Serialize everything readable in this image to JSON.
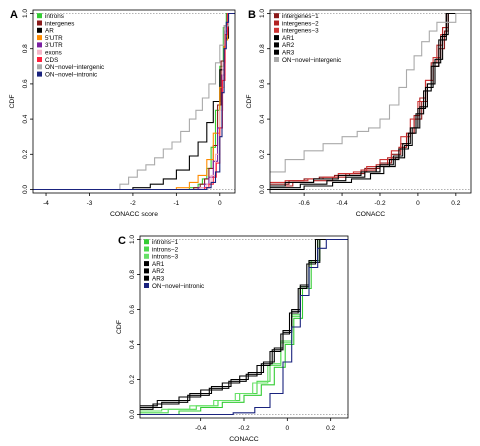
{
  "chart_data": [
    {
      "panel_label": "A",
      "type": "line",
      "subtype": "step-cdf",
      "xlabel": "CONACC score",
      "ylabel": "CDF",
      "xlim": [
        -4.3,
        0.35
      ],
      "ylim": [
        -0.02,
        1.02
      ],
      "x_ticks": [
        -4,
        -3,
        -2,
        -1,
        0
      ],
      "y_ticks": [
        0.0,
        0.2,
        0.4,
        0.6,
        0.8,
        1.0
      ],
      "legend_position": "top-left",
      "series": [
        {
          "name": "introns",
          "color": "#33cc33",
          "x": [
            -4.3,
            -0.7,
            -0.5,
            -0.4,
            -0.3,
            -0.2,
            -0.1,
            0.0,
            0.08,
            0.15,
            0.35
          ],
          "y": [
            0,
            0.01,
            0.03,
            0.06,
            0.12,
            0.24,
            0.45,
            0.7,
            0.92,
            1.0,
            1.0
          ]
        },
        {
          "name": "intergenes",
          "color": "#8b1a1a",
          "x": [
            -4.3,
            -0.6,
            -0.45,
            -0.35,
            -0.25,
            -0.15,
            -0.05,
            0.03,
            0.1,
            0.17,
            0.35
          ],
          "y": [
            0,
            0.01,
            0.03,
            0.06,
            0.12,
            0.25,
            0.48,
            0.73,
            0.93,
            1.0,
            1.0
          ]
        },
        {
          "name": "AR",
          "color": "#000000",
          "x": [
            -4.3,
            -2.0,
            -1.6,
            -1.3,
            -1.0,
            -0.7,
            -0.5,
            -0.3,
            -0.15,
            0.0,
            0.1,
            0.2,
            0.35
          ],
          "y": [
            0,
            0.01,
            0.03,
            0.06,
            0.11,
            0.19,
            0.27,
            0.38,
            0.5,
            0.68,
            0.86,
            1.0,
            1.0
          ]
        },
        {
          "name": "5'UTR",
          "color": "#ff8c00",
          "x": [
            -4.3,
            -1.0,
            -0.7,
            -0.5,
            -0.3,
            -0.15,
            0.0,
            0.1,
            0.18,
            0.35
          ],
          "y": [
            0,
            0.01,
            0.04,
            0.08,
            0.17,
            0.32,
            0.58,
            0.85,
            1.0,
            1.0
          ]
        },
        {
          "name": "3'UTR",
          "color": "#7b1fa2",
          "x": [
            -4.3,
            -0.5,
            -0.35,
            -0.25,
            -0.15,
            -0.05,
            0.05,
            0.12,
            0.18,
            0.35
          ],
          "y": [
            0,
            0.01,
            0.03,
            0.07,
            0.16,
            0.35,
            0.65,
            0.9,
            1.0,
            1.0
          ]
        },
        {
          "name": "exons",
          "color": "#f4b6c8",
          "x": [
            -4.3,
            -0.45,
            -0.3,
            -0.2,
            -0.1,
            0.0,
            0.07,
            0.13,
            0.18,
            0.35
          ],
          "y": [
            0,
            0.01,
            0.03,
            0.08,
            0.2,
            0.45,
            0.72,
            0.92,
            1.0,
            1.0
          ]
        },
        {
          "name": "CDS",
          "color": "#ff1f3c",
          "x": [
            -4.3,
            -0.35,
            -0.25,
            -0.15,
            -0.08,
            0.0,
            0.06,
            0.12,
            0.18,
            0.35
          ],
          "y": [
            0,
            0.01,
            0.03,
            0.07,
            0.15,
            0.35,
            0.62,
            0.88,
            1.0,
            1.0
          ]
        },
        {
          "name": "ON−novel−intergenic",
          "color": "#aaaaaa",
          "x": [
            -4.3,
            -2.5,
            -2.3,
            -2.1,
            -1.9,
            -1.7,
            -1.5,
            -1.3,
            -1.1,
            -0.9,
            -0.7,
            -0.55,
            -0.4,
            -0.25,
            -0.1,
            0.0,
            0.1,
            0.2,
            0.35
          ],
          "y": [
            0,
            0.0,
            0.03,
            0.07,
            0.11,
            0.14,
            0.18,
            0.23,
            0.27,
            0.33,
            0.4,
            0.45,
            0.52,
            0.6,
            0.72,
            0.82,
            0.93,
            1.0,
            1.0
          ]
        },
        {
          "name": "ON−novel−intronic",
          "color": "#1a237e",
          "x": [
            -4.3,
            -0.3,
            -0.2,
            -0.1,
            0.0,
            0.05,
            0.1,
            0.15,
            0.2,
            0.35
          ],
          "y": [
            0,
            0.01,
            0.04,
            0.1,
            0.3,
            0.55,
            0.8,
            0.95,
            1.0,
            1.0
          ]
        }
      ]
    },
    {
      "panel_label": "B",
      "type": "line",
      "subtype": "step-cdf",
      "xlabel": "CONACC",
      "ylabel": "CDF",
      "xlim": [
        -0.78,
        0.28
      ],
      "ylim": [
        -0.02,
        1.02
      ],
      "x_ticks": [
        -0.6,
        -0.4,
        -0.2,
        0.0,
        0.2
      ],
      "y_ticks": [
        0.0,
        0.2,
        0.4,
        0.6,
        0.8,
        1.0
      ],
      "legend_position": "top-left",
      "series": [
        {
          "name": "intergenes−1",
          "color": "#8b1a1a",
          "x": [
            -0.78,
            -0.68,
            -0.6,
            -0.52,
            -0.44,
            -0.36,
            -0.28,
            -0.2,
            -0.14,
            -0.09,
            -0.05,
            -0.02,
            0.02,
            0.05,
            0.08,
            0.11,
            0.14,
            0.16,
            0.28
          ],
          "y": [
            0.03,
            0.05,
            0.06,
            0.07,
            0.08,
            0.09,
            0.12,
            0.15,
            0.2,
            0.26,
            0.32,
            0.4,
            0.5,
            0.6,
            0.7,
            0.8,
            0.9,
            1.0,
            1.0
          ]
        },
        {
          "name": "intergenes−2",
          "color": "#b22222",
          "x": [
            -0.78,
            -0.66,
            -0.55,
            -0.45,
            -0.38,
            -0.3,
            -0.22,
            -0.16,
            -0.1,
            -0.06,
            -0.02,
            0.01,
            0.04,
            0.07,
            0.1,
            0.13,
            0.16,
            0.28
          ],
          "y": [
            0.02,
            0.04,
            0.05,
            0.07,
            0.09,
            0.11,
            0.14,
            0.18,
            0.24,
            0.32,
            0.42,
            0.52,
            0.62,
            0.72,
            0.82,
            0.92,
            1.0,
            1.0
          ]
        },
        {
          "name": "intergenes−3",
          "color": "#cd3333",
          "x": [
            -0.78,
            -0.7,
            -0.58,
            -0.5,
            -0.42,
            -0.34,
            -0.27,
            -0.2,
            -0.14,
            -0.09,
            -0.04,
            0.0,
            0.04,
            0.08,
            0.12,
            0.15,
            0.28
          ],
          "y": [
            0.04,
            0.05,
            0.06,
            0.07,
            0.09,
            0.1,
            0.13,
            0.17,
            0.22,
            0.3,
            0.4,
            0.5,
            0.62,
            0.75,
            0.88,
            1.0,
            1.0
          ]
        },
        {
          "name": "AR1",
          "color": "#000000",
          "x": [
            -0.78,
            -0.6,
            -0.45,
            -0.35,
            -0.25,
            -0.18,
            -0.12,
            -0.07,
            -0.03,
            0.01,
            0.05,
            0.09,
            0.13,
            0.16,
            0.28
          ],
          "y": [
            0.0,
            0.02,
            0.04,
            0.06,
            0.09,
            0.13,
            0.18,
            0.25,
            0.35,
            0.47,
            0.6,
            0.74,
            0.88,
            1.0,
            1.0
          ]
        },
        {
          "name": "AR2",
          "color": "#000000",
          "x": [
            -0.78,
            -0.7,
            -0.55,
            -0.42,
            -0.3,
            -0.22,
            -0.15,
            -0.1,
            -0.05,
            -0.01,
            0.03,
            0.07,
            0.11,
            0.15,
            0.28
          ],
          "y": [
            0.02,
            0.04,
            0.06,
            0.08,
            0.1,
            0.13,
            0.17,
            0.23,
            0.32,
            0.43,
            0.56,
            0.7,
            0.85,
            1.0,
            1.0
          ]
        },
        {
          "name": "AR3",
          "color": "#000000",
          "x": [
            -0.78,
            -0.62,
            -0.48,
            -0.38,
            -0.28,
            -0.2,
            -0.13,
            -0.08,
            -0.04,
            0.0,
            0.04,
            0.08,
            0.12,
            0.15,
            0.28
          ],
          "y": [
            0.01,
            0.03,
            0.05,
            0.07,
            0.1,
            0.14,
            0.19,
            0.26,
            0.35,
            0.46,
            0.58,
            0.72,
            0.87,
            1.0,
            1.0
          ]
        },
        {
          "name": "ON−novel−intergenic",
          "color": "#aaaaaa",
          "x": [
            -0.78,
            -0.7,
            -0.6,
            -0.5,
            -0.4,
            -0.32,
            -0.26,
            -0.2,
            -0.15,
            -0.1,
            -0.06,
            -0.02,
            0.02,
            0.06,
            0.1,
            0.2,
            0.28
          ],
          "y": [
            0.1,
            0.17,
            0.22,
            0.26,
            0.3,
            0.33,
            0.35,
            0.4,
            0.48,
            0.58,
            0.68,
            0.76,
            0.84,
            0.9,
            0.95,
            1.0,
            1.0
          ]
        }
      ]
    },
    {
      "panel_label": "C",
      "type": "line",
      "subtype": "step-cdf",
      "xlabel": "CONACC",
      "ylabel": "CDF",
      "xlim": [
        -0.68,
        0.28
      ],
      "ylim": [
        -0.02,
        1.02
      ],
      "x_ticks": [
        -0.4,
        -0.2,
        0.0,
        0.2
      ],
      "y_ticks": [
        0.0,
        0.2,
        0.4,
        0.6,
        0.8,
        1.0
      ],
      "legend_position": "top-left",
      "series": [
        {
          "name": "introns−1",
          "color": "#33cc33",
          "x": [
            -0.68,
            -0.5,
            -0.4,
            -0.3,
            -0.2,
            -0.12,
            -0.06,
            -0.01,
            0.03,
            0.07,
            0.11,
            0.15,
            0.28
          ],
          "y": [
            0.0,
            0.02,
            0.04,
            0.07,
            0.11,
            0.17,
            0.27,
            0.4,
            0.55,
            0.72,
            0.88,
            1.0,
            1.0
          ]
        },
        {
          "name": "introns−2",
          "color": "#4cd94c",
          "x": [
            -0.68,
            -0.55,
            -0.42,
            -0.32,
            -0.22,
            -0.14,
            -0.08,
            -0.03,
            0.02,
            0.06,
            0.1,
            0.14,
            0.28
          ],
          "y": [
            0.01,
            0.03,
            0.05,
            0.08,
            0.12,
            0.19,
            0.29,
            0.42,
            0.57,
            0.73,
            0.88,
            1.0,
            1.0
          ]
        },
        {
          "name": "introns−3",
          "color": "#66e066",
          "x": [
            -0.68,
            -0.58,
            -0.45,
            -0.34,
            -0.24,
            -0.16,
            -0.09,
            -0.03,
            0.02,
            0.06,
            0.1,
            0.14,
            0.28
          ],
          "y": [
            0.02,
            0.03,
            0.05,
            0.08,
            0.12,
            0.18,
            0.28,
            0.41,
            0.56,
            0.72,
            0.87,
            1.0,
            1.0
          ]
        },
        {
          "name": "AR1",
          "color": "#000000",
          "x": [
            -0.68,
            -0.6,
            -0.45,
            -0.35,
            -0.26,
            -0.18,
            -0.11,
            -0.06,
            -0.02,
            0.02,
            0.06,
            0.1,
            0.14,
            0.28
          ],
          "y": [
            0.05,
            0.08,
            0.12,
            0.16,
            0.2,
            0.24,
            0.3,
            0.38,
            0.48,
            0.6,
            0.74,
            0.88,
            1.0,
            1.0
          ]
        },
        {
          "name": "AR2",
          "color": "#000000",
          "x": [
            -0.68,
            -0.62,
            -0.5,
            -0.4,
            -0.3,
            -0.22,
            -0.14,
            -0.08,
            -0.03,
            0.01,
            0.05,
            0.09,
            0.13,
            0.28
          ],
          "y": [
            0.03,
            0.06,
            0.1,
            0.14,
            0.18,
            0.22,
            0.28,
            0.36,
            0.46,
            0.58,
            0.72,
            0.86,
            1.0,
            1.0
          ]
        },
        {
          "name": "AR3",
          "color": "#000000",
          "x": [
            -0.68,
            -0.58,
            -0.46,
            -0.36,
            -0.27,
            -0.19,
            -0.12,
            -0.07,
            -0.02,
            0.02,
            0.06,
            0.1,
            0.15,
            0.28
          ],
          "y": [
            0.04,
            0.07,
            0.11,
            0.15,
            0.19,
            0.23,
            0.29,
            0.37,
            0.47,
            0.59,
            0.73,
            0.87,
            1.0,
            1.0
          ]
        },
        {
          "name": "ON−novel−intronic",
          "color": "#1a237e",
          "x": [
            -0.68,
            -0.4,
            -0.25,
            -0.15,
            -0.08,
            -0.02,
            0.02,
            0.06,
            0.1,
            0.14,
            0.18,
            0.28
          ],
          "y": [
            0.0,
            0.0,
            0.01,
            0.04,
            0.12,
            0.3,
            0.5,
            0.68,
            0.84,
            0.95,
            1.0,
            1.0
          ]
        }
      ]
    }
  ]
}
